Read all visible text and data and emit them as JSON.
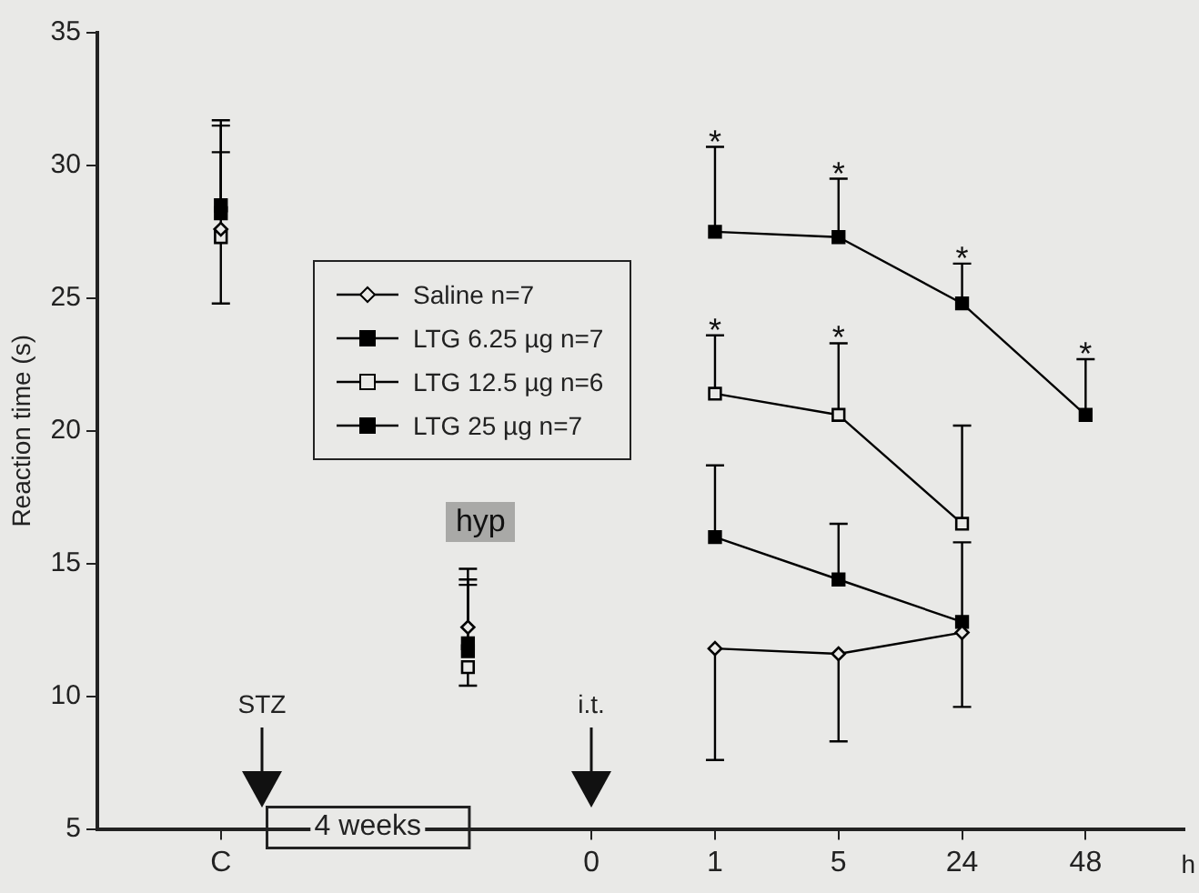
{
  "chart_data": {
    "type": "line",
    "ylabel": "Reaction time (s)",
    "xlabel": "h",
    "categories": [
      "C",
      null,
      null,
      "0",
      "1",
      "5",
      "24",
      "48"
    ],
    "ylim": [
      5,
      35
    ],
    "yticks": [
      5,
      10,
      15,
      20,
      25,
      30,
      35
    ],
    "grid": false,
    "legend": "top left",
    "series": [
      {
        "name": "Saline n=7",
        "color": "#000000",
        "marker": "diamond-open",
        "values": [
          27.6,
          null,
          12.6,
          null,
          11.8,
          11.6,
          12.4,
          null
        ],
        "errors": [
          [
            27.6,
            30.5
          ],
          null,
          [
            12.6,
            14.8
          ],
          null,
          [
            7.6,
            11.8
          ],
          [
            8.3,
            11.6
          ],
          [
            9.6,
            12.4
          ],
          null
        ]
      },
      {
        "name": "LTG 6.25 µg n=7",
        "color": "#000000",
        "marker": "square",
        "values": [
          28.2,
          null,
          11.7,
          null,
          16.0,
          14.4,
          12.8,
          null
        ],
        "errors": [
          [
            28.2,
            31.5
          ],
          null,
          [
            11.7,
            14.2
          ],
          null,
          [
            16.0,
            18.7
          ],
          [
            14.4,
            16.5
          ],
          [
            12.8,
            15.8
          ],
          null
        ]
      },
      {
        "name": "LTG 12.5 µg n=6",
        "color": "#000000",
        "marker": "square-open",
        "values": [
          27.3,
          null,
          11.1,
          null,
          21.4,
          20.6,
          16.5,
          null
        ],
        "errors": [
          [
            24.8,
            27.3
          ],
          null,
          [
            10.4,
            11.1
          ],
          null,
          [
            21.4,
            23.6
          ],
          [
            20.6,
            23.3
          ],
          [
            16.5,
            20.2
          ],
          null
        ]
      },
      {
        "name": "LTG 25 µg n=7",
        "color": "#000000",
        "marker": "square",
        "values": [
          28.5,
          null,
          12.0,
          null,
          27.5,
          27.3,
          24.8,
          20.6
        ],
        "errors": [
          [
            28.5,
            31.7
          ],
          null,
          [
            12.0,
            14.4
          ],
          null,
          [
            27.5,
            30.7
          ],
          [
            27.3,
            29.5
          ],
          [
            24.8,
            26.3
          ],
          [
            20.6,
            22.7
          ]
        ]
      }
    ],
    "annotations": [
      "STZ",
      "i.t.",
      "4 weeks",
      "hyp",
      {
        "text": "*",
        "x": "1",
        "y": 27.5
      },
      {
        "text": "*",
        "x": "5",
        "y": 27.3
      },
      {
        "text": "*",
        "x": "24",
        "y": 24.8
      },
      {
        "text": "*",
        "x": "48",
        "y": 20.6
      },
      {
        "text": "*",
        "x": "1",
        "y": 21.4
      },
      {
        "text": "*",
        "x": "5",
        "y": 20.6
      }
    ]
  }
}
